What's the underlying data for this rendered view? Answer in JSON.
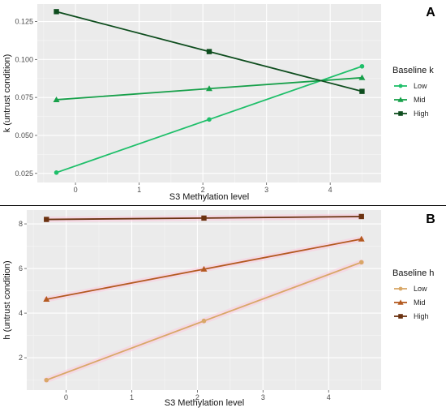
{
  "chart_data": [
    {
      "panel_label": "A",
      "type": "line",
      "xlabel": "S3 Methylation level",
      "ylabel": "k (untrust condition)",
      "xlim": [
        -0.6,
        4.8
      ],
      "ylim": [
        0.019,
        0.1365
      ],
      "xticks": [
        0,
        1,
        2,
        3,
        4
      ],
      "yticks": [
        0.025,
        0.05,
        0.075,
        0.1,
        0.125
      ],
      "ytick_labels": [
        "0.025",
        "0.050",
        "0.075",
        "0.100",
        "0.125"
      ],
      "xtick_labels": [
        "0",
        "1",
        "2",
        "3",
        "4"
      ],
      "x": [
        -0.3,
        2.1,
        4.5
      ],
      "legend_title": "Baseline k",
      "legend_position": "right",
      "grid": true,
      "series": [
        {
          "name": "Low",
          "values": [
            0.0255,
            0.0605,
            0.0955
          ],
          "color": "#1fbf6a",
          "marker": "circle"
        },
        {
          "name": "Mid",
          "values": [
            0.0735,
            0.0808,
            0.088
          ],
          "color": "#17a04a",
          "marker": "triangle"
        },
        {
          "name": "High",
          "values": [
            0.1315,
            0.1052,
            0.079
          ],
          "color": "#0e4d1e",
          "marker": "square"
        }
      ]
    },
    {
      "panel_label": "B",
      "type": "line",
      "xlabel": "S3 Methylation level",
      "ylabel": "h (untrust condition)",
      "xlim": [
        -0.6,
        4.8
      ],
      "ylim": [
        0.55,
        8.62
      ],
      "xticks": [
        0,
        1,
        2,
        3,
        4
      ],
      "yticks": [
        2,
        4,
        6,
        8
      ],
      "ytick_labels": [
        "2",
        "4",
        "6",
        "8"
      ],
      "xtick_labels": [
        "0",
        "1",
        "2",
        "3",
        "4"
      ],
      "x": [
        -0.3,
        2.1,
        4.5
      ],
      "legend_title": "Baseline h",
      "legend_position": "right",
      "grid": true,
      "series": [
        {
          "name": "Low",
          "values": [
            1.0,
            3.65,
            6.28
          ],
          "color": "#d8a868",
          "marker": "circle"
        },
        {
          "name": "Mid",
          "values": [
            4.62,
            5.97,
            7.32
          ],
          "color": "#b35a20",
          "marker": "triangle"
        },
        {
          "name": "High",
          "values": [
            8.2,
            8.26,
            8.33
          ],
          "color": "#6b3210",
          "marker": "square"
        }
      ]
    }
  ]
}
